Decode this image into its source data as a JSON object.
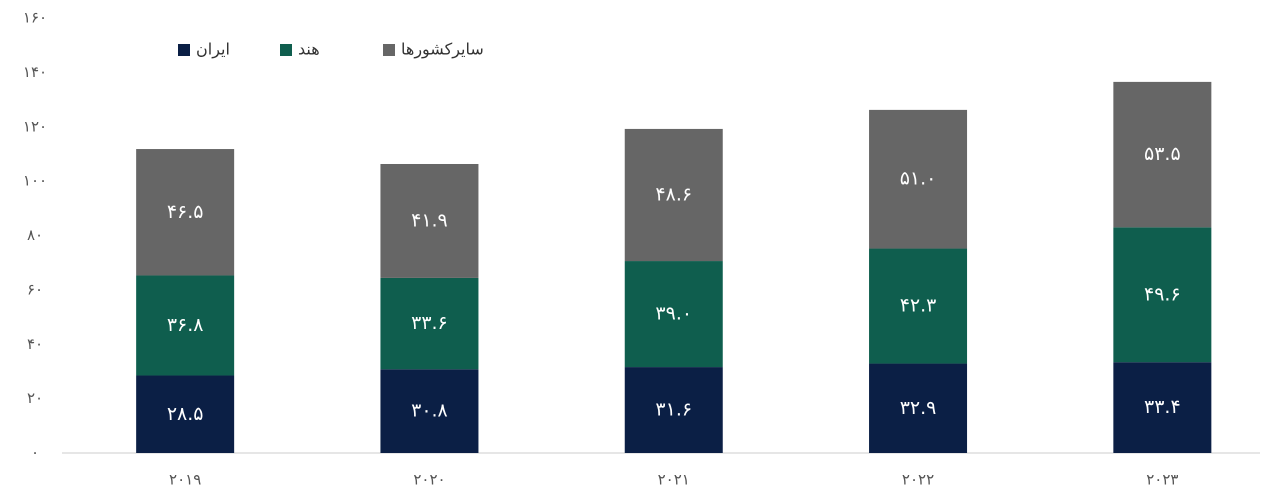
{
  "chart_data": {
    "type": "stacked_bar",
    "categories": [
      "۲۰۱۹",
      "۲۰۲۰",
      "۲۰۲۱",
      "۲۰۲۲",
      "۲۰۲۳"
    ],
    "series": [
      {
        "name": "ایران",
        "color": "#0b1f45",
        "values": [
          28.5,
          30.8,
          31.6,
          32.9,
          33.4
        ],
        "value_labels": [
          "۲۸.۵",
          "۳۰.۸",
          "۳۱.۶",
          "۳۲.۹",
          "۳۳.۴"
        ]
      },
      {
        "name": "هند",
        "color": "#0f5e4e",
        "values": [
          36.8,
          33.6,
          39.0,
          42.3,
          49.6
        ],
        "value_labels": [
          "۳۶.۸",
          "۳۳.۶",
          "۳۹.۰",
          "۴۲.۳",
          "۴۹.۶"
        ]
      },
      {
        "name": "سایرکشورها",
        "color": "#666666",
        "values": [
          46.5,
          41.9,
          48.6,
          51.0,
          53.5
        ],
        "value_labels": [
          "۴۶.۵",
          "۴۱.۹",
          "۴۸.۶",
          "۵۱.۰",
          "۵۳.۵"
        ]
      }
    ],
    "ylim": [
      0,
      160
    ],
    "yticks": [
      {
        "value": 0,
        "label": "۰"
      },
      {
        "value": 20,
        "label": "۲۰"
      },
      {
        "value": 40,
        "label": "۴۰"
      },
      {
        "value": 60,
        "label": "۶۰"
      },
      {
        "value": 80,
        "label": "۸۰"
      },
      {
        "value": 100,
        "label": "۱۰۰"
      },
      {
        "value": 120,
        "label": "۱۲۰"
      },
      {
        "value": 140,
        "label": "۱۴۰"
      },
      {
        "value": 160,
        "label": "۱۶۰"
      }
    ],
    "grid": false,
    "legend": "top-left"
  }
}
